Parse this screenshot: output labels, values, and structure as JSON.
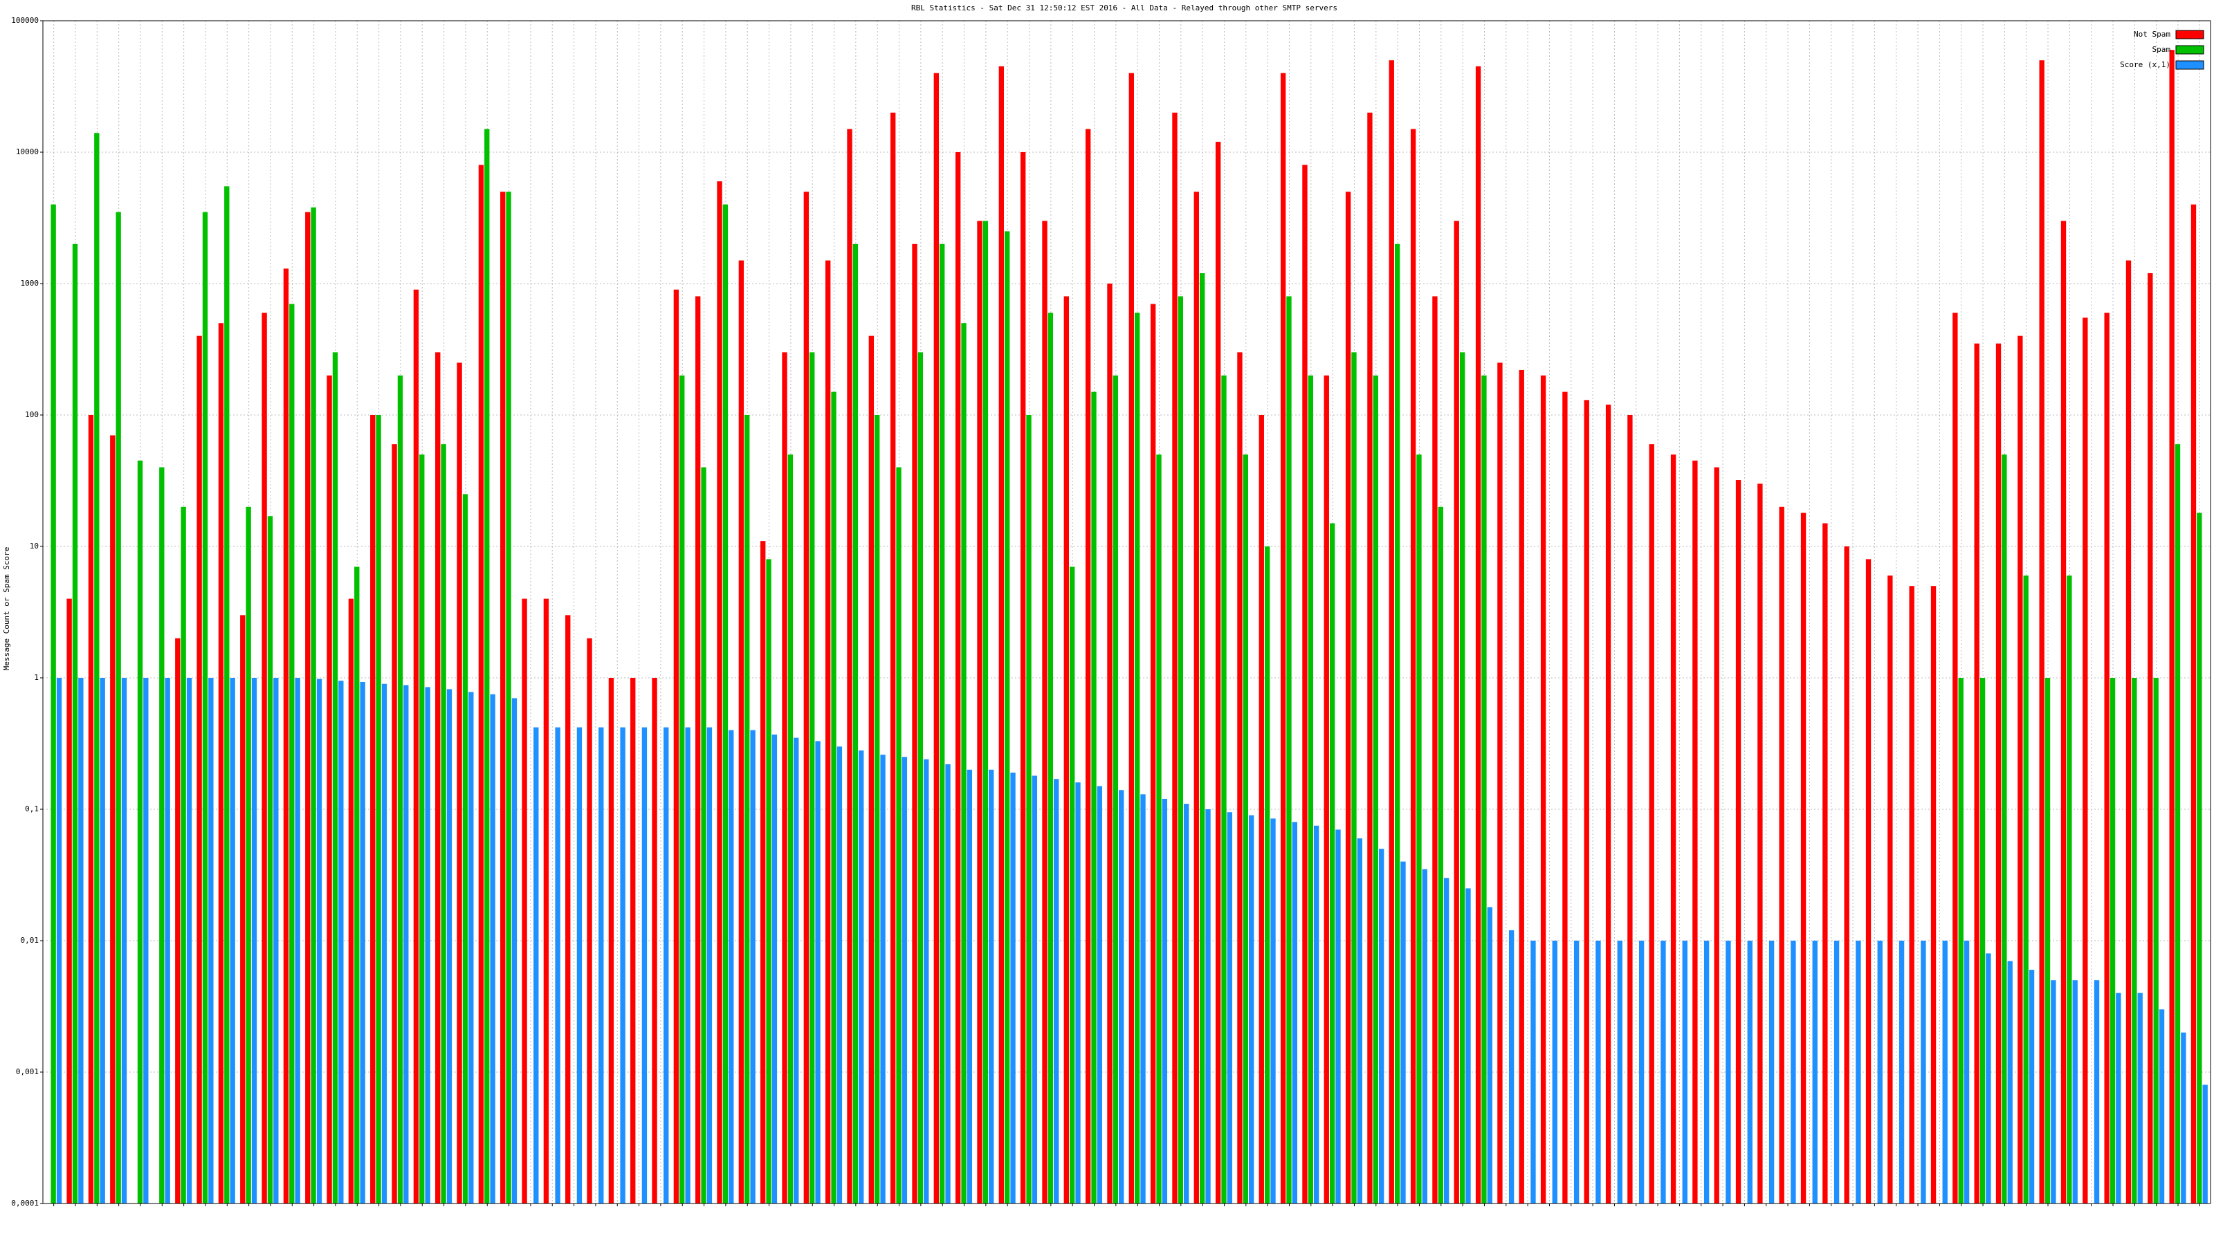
{
  "chart_data": {
    "type": "bar",
    "title": "RBL Statistics - Sat Dec 31 12:50:12 EST 2016 - All Data - Relayed through other SMTP servers",
    "y_label": "Message Count or Spam Score",
    "log_scale": true,
    "grid": true,
    "legend": "top-right",
    "ylim": [
      0.0001,
      100000
    ],
    "yticks": [
      {
        "value": 0.0001,
        "label": "0,0001"
      },
      {
        "value": 0.001,
        "label": "0,001"
      },
      {
        "value": 0.01,
        "label": "0,01"
      },
      {
        "value": 0.1,
        "label": "0,1"
      },
      1,
      10,
      100,
      1000,
      10000,
      100000
    ],
    "categories": [
      null,
      null,
      null,
      null,
      null,
      null,
      null,
      null,
      null,
      null,
      null,
      null,
      null,
      null,
      null,
      null,
      null,
      null,
      null,
      null,
      null,
      null,
      null,
      null,
      null,
      null,
      null,
      null,
      null,
      null,
      null,
      null,
      null,
      null,
      null,
      null,
      null,
      null,
      null,
      null,
      null,
      null,
      null,
      null,
      null,
      null,
      null,
      null,
      null,
      null,
      null,
      null,
      null,
      null,
      null,
      null,
      null,
      null,
      null,
      null,
      null,
      null,
      null,
      null,
      null,
      null,
      null,
      null,
      null,
      null,
      null,
      null,
      null,
      null,
      null,
      null,
      null,
      null,
      null,
      null,
      null,
      null,
      null,
      null,
      null,
      null,
      null,
      null,
      null,
      null,
      null,
      null,
      null,
      null,
      null,
      null,
      null,
      null,
      null,
      null
    ],
    "series": [
      {
        "name": "Not Spam",
        "color": "#ff0000",
        "values": [
          null,
          4,
          100,
          70,
          null,
          null,
          2,
          400,
          500,
          3,
          600,
          1300,
          3500,
          200,
          4,
          100,
          60,
          900,
          300,
          250,
          8000,
          5000,
          4,
          4,
          3,
          2,
          1,
          1,
          1,
          900,
          800,
          6000,
          1500,
          11,
          300,
          5000,
          1500,
          15000,
          400,
          20000,
          2000,
          40000,
          10000,
          3000,
          45000,
          10000,
          3000,
          800,
          15000,
          1000,
          40000,
          700,
          20000,
          5000,
          12000,
          300,
          100,
          40000,
          8000,
          200,
          5000,
          20000,
          50000,
          15000,
          800,
          3000,
          45000,
          250,
          220,
          200,
          150,
          130,
          120,
          100,
          60,
          50,
          45,
          40,
          32,
          30,
          20,
          18,
          15,
          10,
          8,
          6,
          5,
          5,
          600,
          350,
          350,
          400,
          50000,
          3000,
          550,
          600,
          1500,
          1200,
          60000,
          4000
        ]
      },
      {
        "name": "Spam",
        "color": "#00c000",
        "values": [
          4000,
          2000,
          14000,
          3500,
          45,
          40,
          20,
          3500,
          5500,
          20,
          17,
          700,
          3800,
          300,
          7,
          100,
          200,
          50,
          60,
          25,
          15000,
          5000,
          null,
          null,
          null,
          null,
          null,
          null,
          null,
          200,
          40,
          4000,
          100,
          8,
          50,
          300,
          150,
          2000,
          100,
          40,
          300,
          2000,
          500,
          3000,
          2500,
          100,
          600,
          7,
          150,
          200,
          600,
          50,
          800,
          1200,
          200,
          50,
          10,
          800,
          200,
          15,
          300,
          200,
          2000,
          50,
          20,
          300,
          200,
          null,
          null,
          null,
          null,
          null,
          null,
          null,
          null,
          null,
          null,
          null,
          null,
          null,
          null,
          null,
          null,
          null,
          null,
          null,
          null,
          null,
          1,
          1,
          50,
          6,
          1,
          6,
          null,
          1,
          1,
          1,
          60,
          18
        ]
      },
      {
        "name": "Score (x,1)",
        "color": "#1e90ff",
        "values": [
          1,
          1,
          1,
          1,
          1,
          1,
          1,
          1,
          1,
          1,
          1,
          1,
          0.98,
          0.95,
          0.93,
          0.9,
          0.88,
          0.85,
          0.82,
          0.78,
          0.75,
          0.7,
          0.42,
          0.42,
          0.42,
          0.42,
          0.42,
          0.42,
          0.42,
          0.42,
          0.42,
          0.4,
          0.4,
          0.37,
          0.35,
          0.33,
          0.3,
          0.28,
          0.26,
          0.25,
          0.24,
          0.22,
          0.2,
          0.2,
          0.19,
          0.18,
          0.17,
          0.16,
          0.15,
          0.14,
          0.13,
          0.12,
          0.11,
          0.1,
          0.095,
          0.09,
          0.085,
          0.08,
          0.075,
          0.07,
          0.06,
          0.05,
          0.04,
          0.035,
          0.03,
          0.025,
          0.018,
          0.012,
          0.01,
          0.01,
          0.01,
          0.01,
          0.01,
          0.01,
          0.01,
          0.01,
          0.01,
          0.01,
          0.01,
          0.01,
          0.01,
          0.01,
          0.01,
          0.01,
          0.01,
          0.01,
          0.01,
          0.01,
          0.01,
          0.008,
          0.007,
          0.006,
          0.005,
          0.005,
          0.005,
          0.004,
          0.004,
          0.003,
          0.002,
          0.0008
        ]
      }
    ]
  }
}
